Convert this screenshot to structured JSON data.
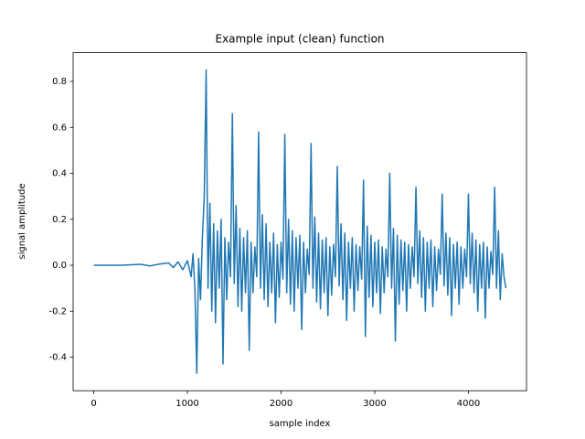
{
  "chart_data": {
    "type": "line",
    "title": "Example input (clean) function",
    "x_label": "sample index",
    "y_label": "signal amplitude",
    "x": [
      0,
      100,
      200,
      300,
      400,
      500,
      600,
      700,
      800,
      850,
      900,
      950,
      1000,
      1040,
      1060,
      1080,
      1100,
      1120,
      1140,
      1160,
      1180,
      1200,
      1220,
      1240,
      1260,
      1280,
      1300,
      1320,
      1340,
      1360,
      1380,
      1400,
      1420,
      1440,
      1460,
      1480,
      1500,
      1520,
      1540,
      1560,
      1580,
      1600,
      1620,
      1640,
      1660,
      1680,
      1700,
      1720,
      1740,
      1760,
      1780,
      1800,
      1820,
      1840,
      1860,
      1880,
      1900,
      1920,
      1940,
      1960,
      1980,
      2000,
      2020,
      2040,
      2060,
      2080,
      2100,
      2120,
      2140,
      2160,
      2180,
      2200,
      2220,
      2240,
      2260,
      2280,
      2300,
      2320,
      2340,
      2360,
      2380,
      2400,
      2420,
      2440,
      2460,
      2480,
      2500,
      2520,
      2540,
      2560,
      2580,
      2600,
      2620,
      2640,
      2660,
      2680,
      2700,
      2720,
      2740,
      2760,
      2780,
      2800,
      2820,
      2840,
      2860,
      2880,
      2900,
      2920,
      2940,
      2960,
      2980,
      3000,
      3020,
      3040,
      3060,
      3080,
      3100,
      3120,
      3140,
      3160,
      3180,
      3200,
      3220,
      3240,
      3260,
      3280,
      3300,
      3320,
      3340,
      3360,
      3380,
      3400,
      3420,
      3440,
      3460,
      3480,
      3500,
      3520,
      3540,
      3560,
      3580,
      3600,
      3620,
      3640,
      3660,
      3680,
      3700,
      3720,
      3740,
      3760,
      3780,
      3800,
      3820,
      3840,
      3860,
      3880,
      3900,
      3920,
      3940,
      3960,
      3980,
      4000,
      4020,
      4040,
      4060,
      4080,
      4100,
      4120,
      4140,
      4160,
      4180,
      4200,
      4220,
      4240,
      4260,
      4280,
      4300,
      4320,
      4340,
      4360,
      4380,
      4400
    ],
    "series": [
      {
        "color": "#1f77b4",
        "values": [
          0,
          0,
          0,
          0,
          0.002,
          0.004,
          -0.003,
          0.005,
          0.01,
          -0.01,
          0.015,
          -0.02,
          0.02,
          -0.05,
          0.05,
          -0.1,
          -0.47,
          0.03,
          -0.15,
          0.12,
          0.3,
          0.85,
          -0.1,
          0.27,
          -0.2,
          0.18,
          -0.25,
          0.15,
          -0.1,
          0.2,
          -0.43,
          0.12,
          -0.15,
          0.1,
          -0.05,
          0.66,
          -0.08,
          0.26,
          -0.18,
          0.16,
          -0.2,
          0.12,
          -0.12,
          0.15,
          -0.37,
          0.1,
          -0.12,
          0.08,
          -0.05,
          0.58,
          -0.1,
          0.22,
          -0.15,
          0.18,
          -0.18,
          0.1,
          -0.12,
          0.14,
          -0.25,
          0.09,
          -0.14,
          0.1,
          -0.06,
          0.57,
          -0.12,
          0.2,
          -0.17,
          0.15,
          -0.2,
          0.12,
          -0.1,
          0.13,
          -0.28,
          0.1,
          -0.12,
          0.07,
          -0.04,
          0.53,
          -0.1,
          0.21,
          -0.16,
          0.14,
          -0.19,
          0.11,
          -0.12,
          0.12,
          -0.22,
          0.08,
          -0.13,
          0.09,
          -0.05,
          0.43,
          -0.09,
          0.18,
          -0.15,
          0.14,
          -0.24,
          0.1,
          -0.1,
          0.12,
          -0.2,
          0.09,
          -0.11,
          0.08,
          -0.06,
          0.37,
          -0.31,
          0.17,
          -0.14,
          0.13,
          -0.18,
          0.1,
          -0.12,
          0.11,
          -0.21,
          0.08,
          -0.12,
          0.07,
          -0.05,
          0.4,
          -0.1,
          0.16,
          -0.33,
          0.13,
          -0.17,
          0.11,
          -0.11,
          0.1,
          -0.2,
          0.09,
          -0.1,
          0.08,
          -0.05,
          0.34,
          -0.08,
          0.15,
          -0.14,
          0.12,
          -0.2,
          0.1,
          -0.1,
          0.11,
          -0.18,
          0.08,
          -0.11,
          0.07,
          -0.04,
          0.31,
          -0.09,
          0.14,
          -0.13,
          0.12,
          -0.22,
          0.09,
          -0.1,
          0.1,
          -0.17,
          0.08,
          -0.1,
          0.07,
          -0.05,
          0.31,
          -0.08,
          0.14,
          -0.12,
          0.11,
          -0.2,
          0.09,
          -0.1,
          0.1,
          -0.23,
          0.08,
          -0.1,
          0.06,
          -0.04,
          0.34,
          -0.1,
          0.15,
          -0.15,
          0.05,
          -0.05,
          -0.1
        ]
      }
    ],
    "xlim": [
      -220,
      4620
    ],
    "ylim": [
      -0.546,
      0.925
    ],
    "xticks": [
      0,
      1000,
      2000,
      3000,
      4000
    ],
    "yticks": [
      -0.4,
      -0.2,
      {
        "value": 0,
        "label": "0.0"
      },
      0.2,
      0.4,
      0.6,
      0.8
    ],
    "grid": false
  }
}
